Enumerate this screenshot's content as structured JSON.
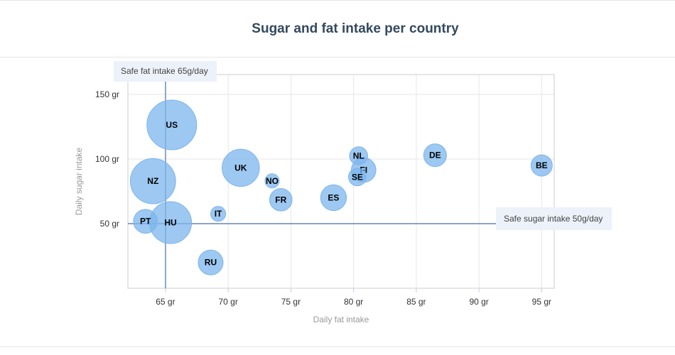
{
  "chart_data": {
    "type": "scatter",
    "title": "Sugar and fat intake per country",
    "xlabel": "Daily fat intake",
    "ylabel": "Daily sugar intake",
    "xlim": [
      62,
      96
    ],
    "ylim": [
      0,
      165
    ],
    "x_ticks": [
      65,
      70,
      75,
      80,
      85,
      90,
      95
    ],
    "y_ticks": [
      50,
      100,
      150
    ],
    "x_tick_labels": [
      "65 gr",
      "70 gr",
      "75 gr",
      "80 gr",
      "85 gr",
      "90 gr",
      "95 gr"
    ],
    "y_tick_labels": [
      "50 gr",
      "100 gr",
      "150 gr"
    ],
    "grid": true,
    "bubble_color": "#7cb5ec",
    "plot_lines": [
      {
        "axis": "x",
        "value": 65,
        "label": "Safe fat intake 65g/day",
        "color": "#4572a7"
      },
      {
        "axis": "y",
        "value": 50,
        "label": "Safe sugar intake 50g/day",
        "color": "#4572a7"
      }
    ],
    "points": [
      {
        "label": "BE",
        "x": 95,
        "y": 95,
        "z": 13.8
      },
      {
        "label": "DE",
        "x": 86.5,
        "y": 102.9,
        "z": 14.7
      },
      {
        "label": "FI",
        "x": 80.8,
        "y": 91.5,
        "z": 15.8
      },
      {
        "label": "NL",
        "x": 80.4,
        "y": 102.5,
        "z": 12
      },
      {
        "label": "SE",
        "x": 80.3,
        "y": 86.1,
        "z": 11.8
      },
      {
        "label": "ES",
        "x": 78.4,
        "y": 70.1,
        "z": 16.6
      },
      {
        "label": "FR",
        "x": 74.2,
        "y": 68.5,
        "z": 14.5
      },
      {
        "label": "NO",
        "x": 73.5,
        "y": 83.1,
        "z": 10
      },
      {
        "label": "UK",
        "x": 71,
        "y": 93.2,
        "z": 24.7
      },
      {
        "label": "IT",
        "x": 69.2,
        "y": 57.6,
        "z": 10.4
      },
      {
        "label": "RU",
        "x": 68.6,
        "y": 20,
        "z": 16
      },
      {
        "label": "US",
        "x": 65.5,
        "y": 126.4,
        "z": 35.3
      },
      {
        "label": "HU",
        "x": 65.4,
        "y": 50.8,
        "z": 28.5
      },
      {
        "label": "PT",
        "x": 63.4,
        "y": 51.8,
        "z": 15.4
      },
      {
        "label": "NZ",
        "x": 64,
        "y": 82.9,
        "z": 31.3
      }
    ]
  }
}
